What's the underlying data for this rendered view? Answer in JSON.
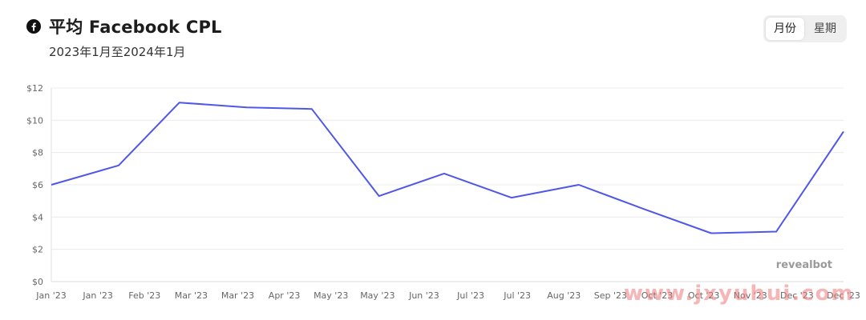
{
  "header": {
    "icon": "facebook-icon",
    "title": "平均 Facebook CPL",
    "subtitle": "2023年1月至2024年1月"
  },
  "toggle": {
    "options": [
      "月份",
      "星期"
    ],
    "selected": "月份"
  },
  "brand": "revealbot",
  "watermark": "www.jxyuhui.com",
  "colors": {
    "line": "#4f57e8",
    "grid": "#ececec"
  },
  "chart_data": {
    "type": "line",
    "title": "平均 Facebook CPL",
    "subtitle": "2023年1月至2024年1月",
    "xlabel": "",
    "ylabel": "",
    "y_ticks": [
      "$0",
      "$2",
      "$4",
      "$6",
      "$8",
      "$10",
      "$12"
    ],
    "ylim": [
      0,
      12
    ],
    "grid": true,
    "x_ticks": [
      "Jan '23",
      "Jan '23",
      "Feb '23",
      "Mar '23",
      "Mar '23",
      "Apr '23",
      "May '23",
      "May '23",
      "Jun '23",
      "Jul '23",
      "Jul '23",
      "Aug '23",
      "Sep '23",
      "Oct '23",
      "Oct '23",
      "Nov '23",
      "Dec '23",
      "Dec '23"
    ],
    "series": [
      {
        "x": [
          "2023-01-01",
          "2023-02-01",
          "2023-03-01",
          "2023-04-01",
          "2023-05-01",
          "2023-06-01",
          "2023-07-01",
          "2023-08-01",
          "2023-09-01",
          "2023-10-01",
          "2023-11-01",
          "2023-12-01",
          "2024-01-01"
        ],
        "values": [
          6.0,
          7.2,
          11.1,
          10.8,
          10.7,
          5.3,
          6.7,
          5.2,
          6.0,
          4.5,
          3.0,
          3.1,
          9.3
        ]
      }
    ]
  }
}
